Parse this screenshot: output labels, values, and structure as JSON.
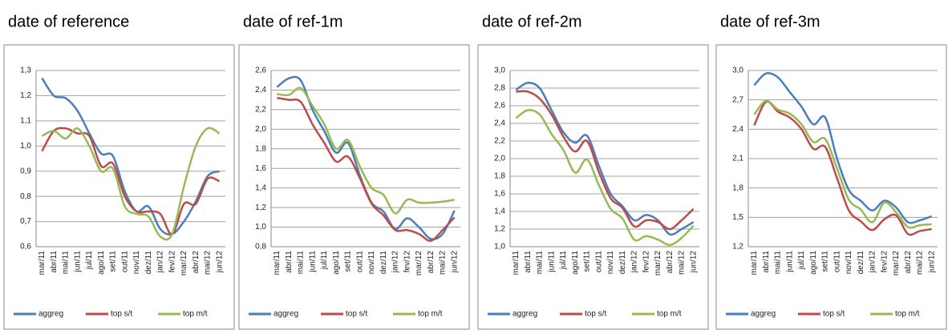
{
  "chart_data": [
    {
      "type": "line",
      "title": "date of reference",
      "categories": [
        "mar/11",
        "abr/11",
        "mai/11",
        "jun/11",
        "jul/11",
        "ago/11",
        "set/11",
        "out/11",
        "nov/11",
        "dez/11",
        "jan/12",
        "fev/12",
        "mar/12",
        "abr/12",
        "mai/12",
        "jun/12"
      ],
      "ylim": [
        0.6,
        1.3
      ],
      "yticks": [
        {
          "value": 0.6,
          "label": "0,6"
        },
        {
          "value": 0.7,
          "label": "0,7"
        },
        {
          "value": 0.8,
          "label": "0,8"
        },
        {
          "value": 0.9,
          "label": "0,9"
        },
        {
          "value": 1.0,
          "label": "1,0"
        },
        {
          "value": 1.1,
          "label": "1,1"
        },
        {
          "value": 1.2,
          "label": "1,2"
        },
        {
          "value": 1.3,
          "label": "1,3"
        }
      ],
      "grid": true,
      "legend": "bottom",
      "series": [
        {
          "name": "aggreg",
          "color": "#4a7ebb",
          "values": [
            1.27,
            1.2,
            1.19,
            1.14,
            1.05,
            0.97,
            0.96,
            0.82,
            0.74,
            0.76,
            0.67,
            0.65,
            0.7,
            0.78,
            0.88,
            0.9
          ]
        },
        {
          "name": "top s/t",
          "color": "#be4b48",
          "values": [
            0.98,
            1.06,
            1.07,
            1.05,
            1.04,
            0.92,
            0.93,
            0.8,
            0.74,
            0.74,
            0.73,
            0.65,
            0.77,
            0.77,
            0.87,
            0.86
          ]
        },
        {
          "name": "top m/t",
          "color": "#98b954",
          "values": [
            1.04,
            1.06,
            1.03,
            1.07,
            1.0,
            0.9,
            0.91,
            0.76,
            0.73,
            0.72,
            0.64,
            0.65,
            0.84,
            1.0,
            1.07,
            1.05
          ]
        }
      ]
    },
    {
      "type": "line",
      "title": "date of ref-1m",
      "categories": [
        "mar/11",
        "abr/11",
        "mai/11",
        "jun/11",
        "jul/11",
        "ago/11",
        "set/11",
        "out/11",
        "nov/11",
        "dez/11",
        "jan/12",
        "fev/12",
        "mar/12",
        "abr/12",
        "mai/12",
        "jun/12"
      ],
      "ylim": [
        0.8,
        2.6
      ],
      "yticks": [
        {
          "value": 0.8,
          "label": "0,8"
        },
        {
          "value": 1.0,
          "label": "1,0"
        },
        {
          "value": 1.2,
          "label": "1,2"
        },
        {
          "value": 1.4,
          "label": "1,4"
        },
        {
          "value": 1.6,
          "label": "1,6"
        },
        {
          "value": 1.8,
          "label": "1,8"
        },
        {
          "value": 2.0,
          "label": "2,0"
        },
        {
          "value": 2.2,
          "label": "2,2"
        },
        {
          "value": 2.4,
          "label": "2,4"
        },
        {
          "value": 2.6,
          "label": "2,6"
        }
      ],
      "grid": true,
      "legend": "bottom",
      "series": [
        {
          "name": "aggreg",
          "color": "#4a7ebb",
          "values": [
            2.43,
            2.52,
            2.5,
            2.2,
            1.98,
            1.76,
            1.86,
            1.53,
            1.25,
            1.16,
            0.98,
            1.09,
            1.0,
            0.88,
            0.93,
            1.17
          ]
        },
        {
          "name": "top s/t",
          "color": "#be4b48",
          "values": [
            2.32,
            2.3,
            2.28,
            2.05,
            1.86,
            1.67,
            1.72,
            1.5,
            1.24,
            1.12,
            0.97,
            0.97,
            0.93,
            0.86,
            0.97,
            1.1
          ]
        },
        {
          "name": "top m/t",
          "color": "#98b954",
          "values": [
            2.36,
            2.35,
            2.42,
            2.24,
            2.05,
            1.8,
            1.89,
            1.62,
            1.4,
            1.33,
            1.14,
            1.28,
            1.25,
            1.25,
            1.26,
            1.28
          ]
        }
      ]
    },
    {
      "type": "line",
      "title": "date of ref-2m",
      "categories": [
        "mar/11",
        "abr/11",
        "mai/11",
        "jun/11",
        "jul/11",
        "ago/11",
        "set/11",
        "out/11",
        "nov/11",
        "dez/11",
        "jan/12",
        "fev/12",
        "mar/12",
        "abr/12",
        "mai/12",
        "jun/12"
      ],
      "ylim": [
        1.0,
        3.0
      ],
      "yticks": [
        {
          "value": 1.0,
          "label": "1,0"
        },
        {
          "value": 1.2,
          "label": "1,2"
        },
        {
          "value": 1.4,
          "label": "1,4"
        },
        {
          "value": 1.6,
          "label": "1,6"
        },
        {
          "value": 1.8,
          "label": "1,8"
        },
        {
          "value": 2.0,
          "label": "2,0"
        },
        {
          "value": 2.2,
          "label": "2,2"
        },
        {
          "value": 2.4,
          "label": "2,4"
        },
        {
          "value": 2.6,
          "label": "2,6"
        },
        {
          "value": 2.8,
          "label": "2,8"
        },
        {
          "value": 3.0,
          "label": "3,0"
        }
      ],
      "grid": true,
      "legend": "bottom",
      "series": [
        {
          "name": "aggreg",
          "color": "#4a7ebb",
          "values": [
            2.78,
            2.86,
            2.8,
            2.55,
            2.3,
            2.18,
            2.26,
            1.92,
            1.6,
            1.46,
            1.3,
            1.36,
            1.3,
            1.14,
            1.2,
            1.28
          ]
        },
        {
          "name": "top s/t",
          "color": "#be4b48",
          "values": [
            2.76,
            2.76,
            2.68,
            2.5,
            2.25,
            2.08,
            2.2,
            1.85,
            1.55,
            1.44,
            1.23,
            1.3,
            1.28,
            1.2,
            1.3,
            1.43
          ]
        },
        {
          "name": "top m/t",
          "color": "#98b954",
          "values": [
            2.46,
            2.55,
            2.5,
            2.28,
            2.1,
            1.84,
            1.99,
            1.7,
            1.43,
            1.32,
            1.08,
            1.12,
            1.08,
            1.02,
            1.1,
            1.24
          ]
        }
      ]
    },
    {
      "type": "line",
      "title": "date of ref-3m",
      "categories": [
        "mar/11",
        "abr/11",
        "mai/11",
        "jun/11",
        "jul/11",
        "ago/11",
        "set/11",
        "out/11",
        "nov/11",
        "dez/11",
        "jan/12",
        "fev/12",
        "mar/12",
        "abr/12",
        "mai/12",
        "jun/12"
      ],
      "ylim": [
        1.2,
        3.0
      ],
      "yticks": [
        {
          "value": 1.2,
          "label": "1,2"
        },
        {
          "value": 1.5,
          "label": "1,5"
        },
        {
          "value": 1.8,
          "label": "1,8"
        },
        {
          "value": 2.1,
          "label": "2,1"
        },
        {
          "value": 2.4,
          "label": "2,4"
        },
        {
          "value": 2.7,
          "label": "2,7"
        },
        {
          "value": 3.0,
          "label": "3,0"
        }
      ],
      "grid": true,
      "legend": "bottom",
      "series": [
        {
          "name": "aggreg",
          "color": "#4a7ebb",
          "values": [
            2.85,
            2.97,
            2.93,
            2.78,
            2.63,
            2.45,
            2.52,
            2.1,
            1.78,
            1.67,
            1.57,
            1.67,
            1.6,
            1.45,
            1.47,
            1.51
          ]
        },
        {
          "name": "top s/t",
          "color": "#be4b48",
          "values": [
            2.44,
            2.68,
            2.58,
            2.52,
            2.4,
            2.2,
            2.22,
            1.9,
            1.57,
            1.46,
            1.37,
            1.48,
            1.52,
            1.33,
            1.36,
            1.38
          ]
        },
        {
          "name": "top m/t",
          "color": "#98b954",
          "values": [
            2.55,
            2.69,
            2.6,
            2.56,
            2.45,
            2.27,
            2.3,
            2.0,
            1.68,
            1.58,
            1.45,
            1.65,
            1.55,
            1.4,
            1.42,
            1.43
          ]
        }
      ]
    }
  ]
}
